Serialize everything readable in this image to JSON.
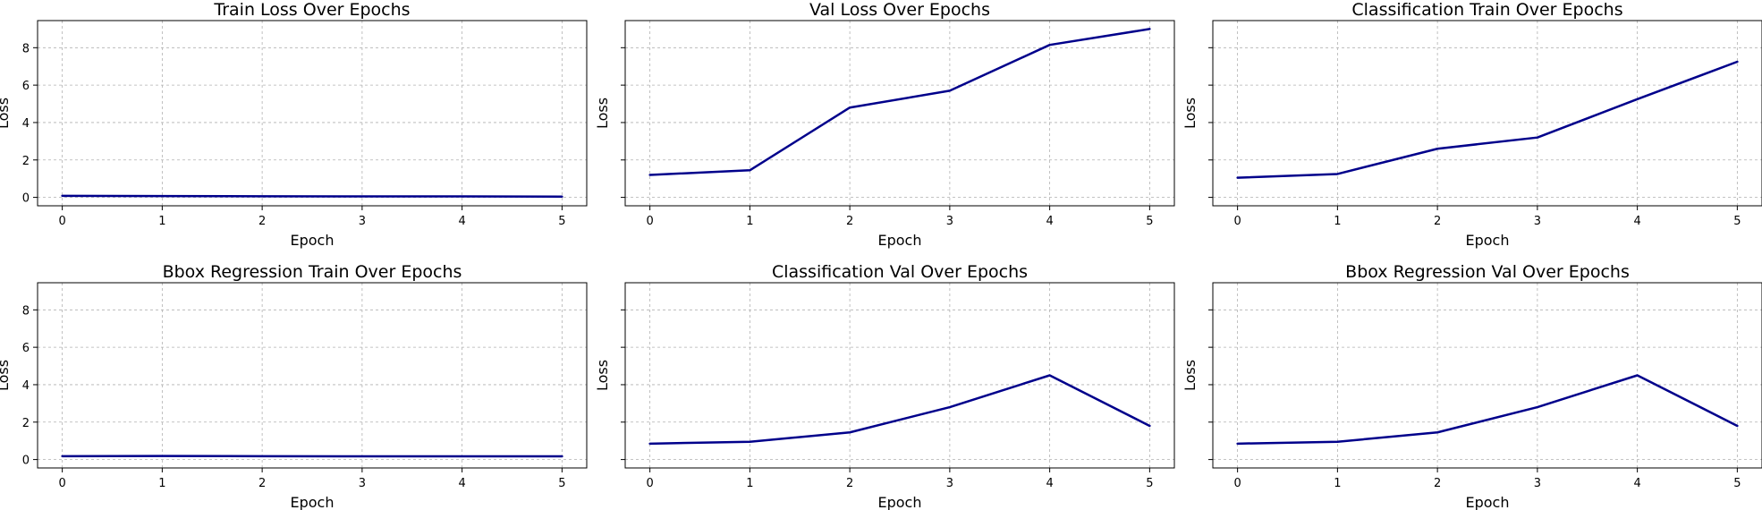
{
  "colors": {
    "line": "#00008b",
    "grid": "#b0b0b0"
  },
  "chart_data": [
    {
      "type": "line",
      "title": "Train Loss Over Epochs",
      "xlabel": "Epoch",
      "ylabel": "Loss",
      "x": [
        0,
        1,
        2,
        3,
        4,
        5
      ],
      "xticks": [
        "0",
        "1",
        "2",
        "3",
        "4",
        "5"
      ],
      "yticks": [
        "0",
        "2",
        "4",
        "6",
        "8"
      ],
      "show_ytick_labels": true,
      "ylim": [
        -0.45,
        9.45
      ],
      "grid": true,
      "series": [
        {
          "values": [
            0.08,
            0.07,
            0.06,
            0.05,
            0.05,
            0.04
          ]
        }
      ]
    },
    {
      "type": "line",
      "title": "Val Loss Over Epochs",
      "xlabel": "Epoch",
      "ylabel": "Loss",
      "x": [
        0,
        1,
        2,
        3,
        4,
        5
      ],
      "xticks": [
        "0",
        "1",
        "2",
        "3",
        "4",
        "5"
      ],
      "yticks": [
        "0",
        "2",
        "4",
        "6",
        "8"
      ],
      "show_ytick_labels": false,
      "ylim": [
        -0.45,
        9.45
      ],
      "grid": true,
      "series": [
        {
          "values": [
            1.2,
            1.45,
            4.8,
            5.7,
            8.15,
            9.0
          ]
        }
      ]
    },
    {
      "type": "line",
      "title": "Classification Train Over Epochs",
      "xlabel": "Epoch",
      "ylabel": "Loss",
      "x": [
        0,
        1,
        2,
        3,
        4,
        5
      ],
      "xticks": [
        "0",
        "1",
        "2",
        "3",
        "4",
        "5"
      ],
      "yticks": [
        "0",
        "2",
        "4",
        "6",
        "8"
      ],
      "show_ytick_labels": false,
      "ylim": [
        -0.45,
        9.45
      ],
      "grid": true,
      "series": [
        {
          "values": [
            1.05,
            1.25,
            2.6,
            3.2,
            5.25,
            7.25
          ]
        }
      ]
    },
    {
      "type": "line",
      "title": "Bbox Regression Train Over Epochs",
      "xlabel": "Epoch",
      "ylabel": "Loss",
      "x": [
        0,
        1,
        2,
        3,
        4,
        5
      ],
      "xticks": [
        "0",
        "1",
        "2",
        "3",
        "4",
        "5"
      ],
      "yticks": [
        "0",
        "2",
        "4",
        "6",
        "8"
      ],
      "show_ytick_labels": true,
      "ylim": [
        -0.45,
        9.45
      ],
      "grid": true,
      "series": [
        {
          "values": [
            0.18,
            0.19,
            0.18,
            0.17,
            0.17,
            0.17
          ]
        }
      ]
    },
    {
      "type": "line",
      "title": "Classification Val Over Epochs",
      "xlabel": "Epoch",
      "ylabel": "Loss",
      "x": [
        0,
        1,
        2,
        3,
        4,
        5
      ],
      "xticks": [
        "0",
        "1",
        "2",
        "3",
        "4",
        "5"
      ],
      "yticks": [
        "0",
        "2",
        "4",
        "6",
        "8"
      ],
      "show_ytick_labels": false,
      "ylim": [
        -0.45,
        9.45
      ],
      "grid": true,
      "series": [
        {
          "values": [
            0.85,
            0.95,
            1.45,
            2.8,
            4.5,
            1.8
          ]
        }
      ]
    },
    {
      "type": "line",
      "title": "Bbox Regression Val Over Epochs",
      "xlabel": "Epoch",
      "ylabel": "Loss",
      "x": [
        0,
        1,
        2,
        3,
        4,
        5
      ],
      "xticks": [
        "0",
        "1",
        "2",
        "3",
        "4",
        "5"
      ],
      "yticks": [
        "0",
        "2",
        "4",
        "6",
        "8"
      ],
      "show_ytick_labels": false,
      "ylim": [
        -0.45,
        9.45
      ],
      "grid": true,
      "series": [
        {
          "values": [
            0.85,
            0.95,
            1.45,
            2.8,
            4.5,
            1.8
          ]
        }
      ]
    }
  ]
}
